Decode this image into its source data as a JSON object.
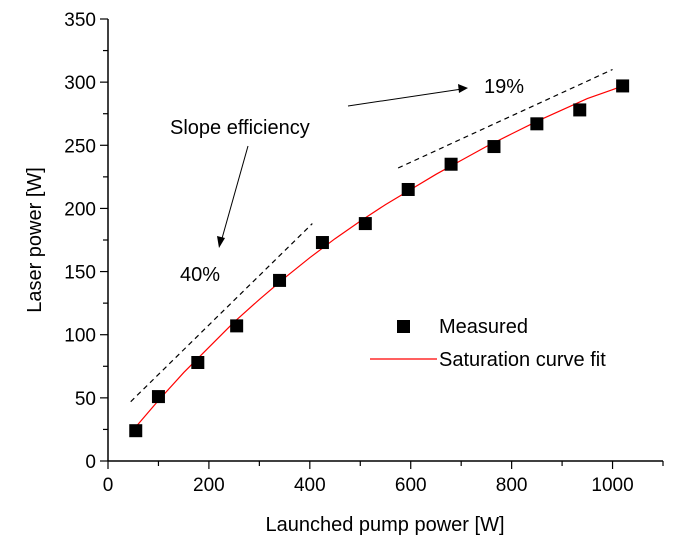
{
  "chart_data": {
    "type": "scatter",
    "xlabel": "Launched pump power [W]",
    "ylabel": "Laser power [W]",
    "xlim": [
      0,
      1100
    ],
    "ylim": [
      0,
      350
    ],
    "x_ticks": [
      0,
      200,
      400,
      600,
      800,
      1000
    ],
    "y_ticks": [
      0,
      50,
      100,
      150,
      200,
      250,
      300,
      350
    ],
    "grid": false,
    "legend_position": "center-right",
    "series": [
      {
        "name": "Measured",
        "kind": "markers",
        "marker": "square",
        "color": "#000000",
        "x": [
          55,
          100,
          178,
          255,
          340,
          425,
          510,
          595,
          680,
          765,
          850,
          935,
          1020
        ],
        "y": [
          24,
          51,
          78,
          107,
          143,
          173,
          188,
          215,
          235,
          249,
          267,
          278,
          297
        ]
      },
      {
        "name": "Saturation curve fit",
        "kind": "line",
        "color": "#ff0000",
        "x": [
          55,
          100,
          150,
          200,
          250,
          300,
          350,
          400,
          450,
          500,
          550,
          600,
          650,
          700,
          750,
          800,
          850,
          900,
          950,
          1000,
          1020
        ],
        "y": [
          27,
          48,
          70,
          90,
          110,
          128,
          145,
          161,
          176,
          190,
          203,
          215,
          227,
          238,
          249,
          259,
          269,
          278,
          287,
          294,
          297
        ]
      }
    ],
    "slope_lines": [
      {
        "label": "40%",
        "x": [
          45,
          405
        ],
        "y": [
          47,
          188
        ]
      },
      {
        "label": "19%",
        "x": [
          575,
          1000
        ],
        "y": [
          232,
          310
        ]
      }
    ],
    "annotations": {
      "slope_efficiency": "Slope efficiency",
      "low_slope": "40%",
      "high_slope": "19%"
    }
  }
}
